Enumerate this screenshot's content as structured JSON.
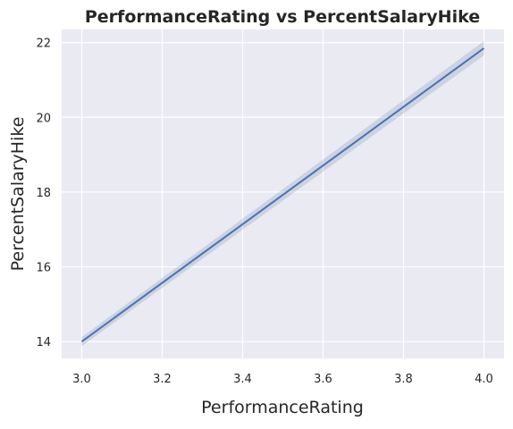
{
  "chart_data": {
    "type": "line",
    "title": "PerformanceRating vs PercentSalaryHike",
    "xlabel": "PerformanceRating",
    "ylabel": "PercentSalaryHike",
    "xlim": [
      2.95,
      4.05
    ],
    "ylim": [
      13.55,
      22.35
    ],
    "x_ticks": [
      3.0,
      3.2,
      3.4,
      3.6,
      3.8,
      4.0
    ],
    "x_tick_labels": [
      "3.0",
      "3.2",
      "3.4",
      "3.6",
      "3.8",
      "4.0"
    ],
    "y_ticks": [
      14,
      16,
      18,
      20,
      22
    ],
    "y_tick_labels": [
      "14",
      "16",
      "18",
      "20",
      "22"
    ],
    "grid": true,
    "background": "#eaeaf2",
    "series": [
      {
        "x": [
          3.0,
          4.0
        ],
        "y": [
          14.0,
          21.85
        ],
        "ci_lower": [
          13.88,
          21.66
        ],
        "ci_upper": [
          14.12,
          22.04
        ],
        "color": "#4c72b0",
        "ci_color": "#4c72b0"
      }
    ]
  }
}
